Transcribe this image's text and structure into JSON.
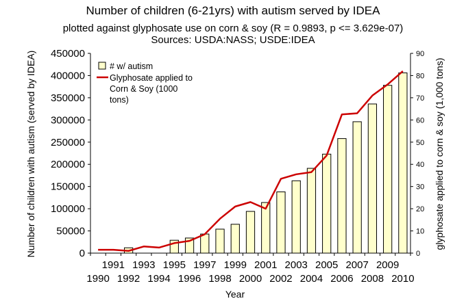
{
  "chart_data": {
    "type": "bar+line",
    "title": "Number of children (6-21yrs) with autism served by IDEA",
    "subtitle_lines": [
      "plotted against glyphosate use on corn & soy (R = 0.9893, p <= 3.629e-07)",
      "Sources: USDA:NASS; USDE:IDEA"
    ],
    "xlabel": "Year",
    "ylabel": "Number of children with autism (served by IDEA)",
    "y2label": "glyphosate applied to corn & soy (1,000 tons)",
    "years": [
      1990,
      1991,
      1992,
      1993,
      1994,
      1995,
      1996,
      1997,
      1998,
      1999,
      2000,
      2001,
      2002,
      2003,
      2004,
      2005,
      2006,
      2007,
      2008,
      2009,
      2010
    ],
    "x_tick_labels_upper": [
      "1991",
      "1993",
      "1995",
      "1997",
      "1999",
      "2001",
      "2003",
      "2005",
      "2007",
      "2009"
    ],
    "x_tick_labels_lower": [
      "1990",
      "1992",
      "1994",
      "1996",
      "1998",
      "2000",
      "2002",
      "2004",
      "2006",
      "2008",
      "2010"
    ],
    "ylim": [
      0,
      450000
    ],
    "y_ticks": [
      "0",
      "50000",
      "100000",
      "150000",
      "200000",
      "250000",
      "300000",
      "350000",
      "400000",
      "450000"
    ],
    "y2lim": [
      0,
      90
    ],
    "y2_ticks": [
      "0",
      "10",
      "20",
      "30",
      "40",
      "50",
      "60",
      "70",
      "80",
      "90"
    ],
    "series": [
      {
        "name": "# w/ autism",
        "type": "bar",
        "color": "#ffffcc",
        "values": [
          null,
          null,
          12000,
          null,
          null,
          29000,
          34000,
          43000,
          54000,
          65000,
          94000,
          114000,
          138000,
          163000,
          191000,
          223000,
          258000,
          296000,
          336000,
          378000,
          406000
        ]
      },
      {
        "name": "Glyphosate applied to Corn & Soy (1000 tons)",
        "legend_lines": [
          "Glyphosate applied to",
          "Corn & Soy (1000",
          "tons)"
        ],
        "type": "line",
        "axis": "right",
        "color": "#cc0000",
        "values": [
          1.5,
          1.5,
          1.0,
          3.0,
          2.5,
          4.5,
          5.5,
          8.5,
          15.5,
          21.0,
          23.0,
          20.0,
          33.5,
          35.5,
          36.5,
          44.0,
          62.5,
          63.0,
          71.0,
          76.0,
          82.0
        ]
      }
    ]
  }
}
